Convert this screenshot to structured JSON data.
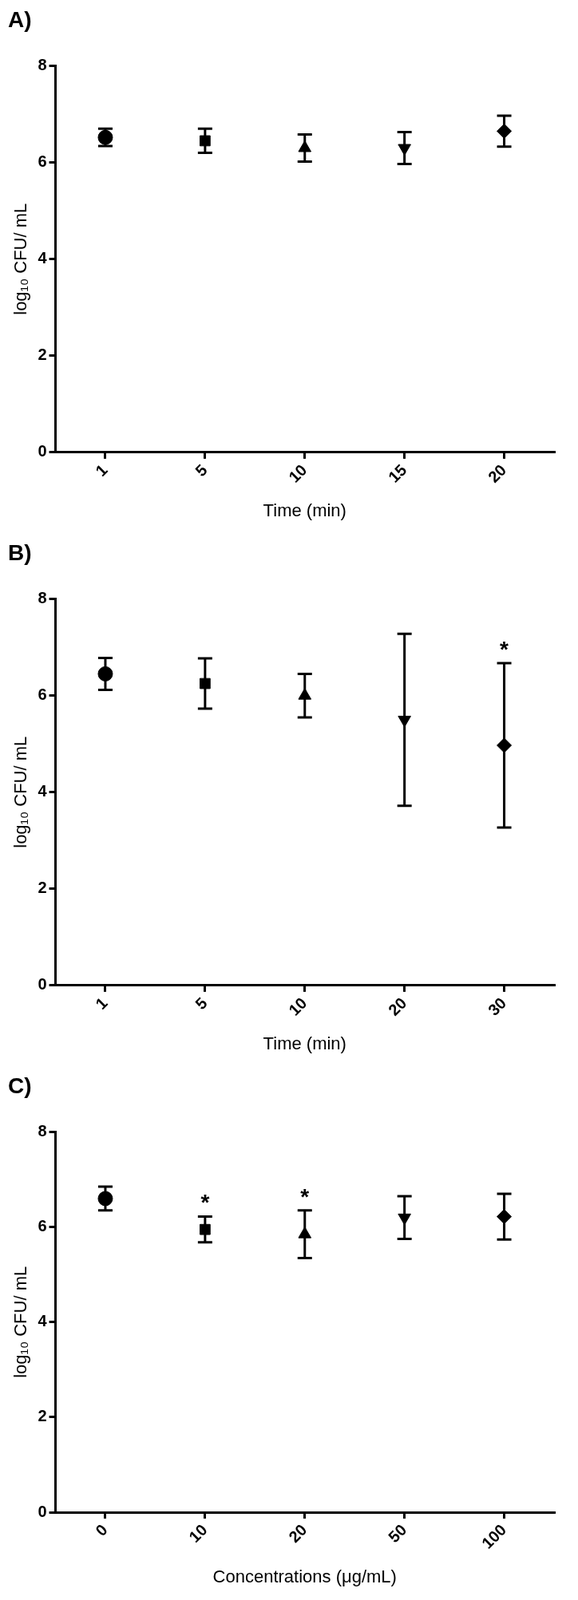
{
  "chart_data": [
    {
      "type": "scatter",
      "title": "A)",
      "x_label": "Time (min)",
      "y_label": "log₁₀ CFU/ mL",
      "categories": [
        "1",
        "5",
        "10",
        "15",
        "20"
      ],
      "values": [
        6.52,
        6.45,
        6.3,
        6.3,
        6.65
      ],
      "errors": [
        0.18,
        0.25,
        0.28,
        0.33,
        0.32
      ],
      "marker": [
        "circle",
        "square",
        "triangle",
        "triangle-down",
        "diamond"
      ],
      "color": "#000000",
      "ylim": [
        0,
        8
      ],
      "yticks": [
        0,
        2,
        4,
        6,
        8
      ],
      "grid": false
    },
    {
      "type": "scatter",
      "title": "B)",
      "x_label": "Time (min)",
      "y_label": "log₁₀ CFU/ mL",
      "categories": [
        "1",
        "5",
        "10",
        "20",
        "30"
      ],
      "values": [
        6.45,
        6.25,
        6.0,
        5.5,
        4.97
      ],
      "errors": [
        0.33,
        0.52,
        0.45,
        1.78,
        1.7
      ],
      "marker": [
        "circle",
        "square",
        "triangle",
        "triangle-down",
        "diamond"
      ],
      "color": "#000000",
      "annotations": [
        {
          "x": "30",
          "text": "*"
        }
      ],
      "ylim": [
        0,
        8
      ],
      "yticks": [
        0,
        2,
        4,
        6,
        8
      ],
      "grid": false
    },
    {
      "type": "scatter",
      "title": "C)",
      "x_label": "Concentrations (μg/mL)",
      "y_label": "log₁₀ CFU/ mL",
      "categories": [
        "0",
        "10",
        "20",
        "50",
        "100"
      ],
      "values": [
        6.6,
        5.95,
        5.85,
        6.2,
        6.22
      ],
      "errors": [
        0.25,
        0.27,
        0.5,
        0.45,
        0.48
      ],
      "marker": [
        "circle",
        "square",
        "triangle",
        "triangle-down",
        "diamond"
      ],
      "color": "#000000",
      "annotations": [
        {
          "x": "10",
          "text": "*"
        },
        {
          "x": "20",
          "text": "*"
        }
      ],
      "ylim": [
        0,
        8
      ],
      "yticks": [
        0,
        2,
        4,
        6,
        8
      ],
      "grid": false
    }
  ]
}
